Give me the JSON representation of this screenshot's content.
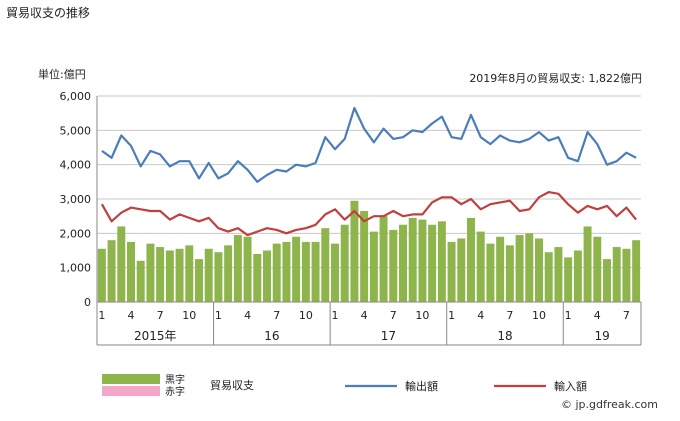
{
  "page": {
    "title": "貿易収支の推移",
    "unit_label": "単位:億円",
    "annotation": "2019年8月の貿易収支: 1,822億円",
    "credit": "© jp.gdfreak.com"
  },
  "legend": {
    "surplus": "黒字",
    "deficit": "赤字",
    "balance": "貿易収支",
    "exports": "輸出額",
    "imports": "輸入額"
  },
  "colors": {
    "surplus": "#8db54c",
    "deficit": "#f4a6c8",
    "exports": "#4a7ebb",
    "imports": "#c0403e",
    "grid": "#c8c8c8",
    "axis": "#888888"
  },
  "chart_data": {
    "type": "bar+line",
    "ylim": [
      0,
      6000
    ],
    "yticks": [
      0,
      1000,
      2000,
      3000,
      4000,
      5000,
      6000
    ],
    "ytick_labels": [
      "0",
      "1,000",
      "2,000",
      "3,000",
      "4,000",
      "5,000",
      "6,000"
    ],
    "month_ticks": [
      {
        "index": 0,
        "label": "1"
      },
      {
        "index": 3,
        "label": "4"
      },
      {
        "index": 6,
        "label": "7"
      },
      {
        "index": 9,
        "label": "10"
      },
      {
        "index": 12,
        "label": "1"
      },
      {
        "index": 15,
        "label": "4"
      },
      {
        "index": 18,
        "label": "7"
      },
      {
        "index": 21,
        "label": "10"
      },
      {
        "index": 24,
        "label": "1"
      },
      {
        "index": 27,
        "label": "4"
      },
      {
        "index": 30,
        "label": "7"
      },
      {
        "index": 33,
        "label": "10"
      },
      {
        "index": 36,
        "label": "1"
      },
      {
        "index": 39,
        "label": "4"
      },
      {
        "index": 42,
        "label": "7"
      },
      {
        "index": 45,
        "label": "10"
      },
      {
        "index": 48,
        "label": "1"
      },
      {
        "index": 51,
        "label": "4"
      },
      {
        "index": 54,
        "label": "7"
      }
    ],
    "years": [
      {
        "label": "2015年",
        "start": 0,
        "end": 12
      },
      {
        "label": "16",
        "start": 12,
        "end": 24
      },
      {
        "label": "17",
        "start": 24,
        "end": 36
      },
      {
        "label": "18",
        "start": 36,
        "end": 48
      },
      {
        "label": "19",
        "start": 48,
        "end": 56
      }
    ],
    "series": [
      {
        "name": "貿易収支",
        "kind": "bar",
        "values": [
          1550,
          1800,
          2200,
          1750,
          1200,
          1700,
          1600,
          1500,
          1550,
          1650,
          1250,
          1550,
          1450,
          1650,
          1950,
          1900,
          1400,
          1500,
          1700,
          1750,
          1900,
          1750,
          1750,
          2150,
          1700,
          2250,
          2950,
          2650,
          2050,
          2500,
          2100,
          2250,
          2450,
          2400,
          2250,
          2350,
          1750,
          1850,
          2450,
          2050,
          1700,
          1900,
          1650,
          1950,
          2000,
          1850,
          1450,
          1600,
          1300,
          1500,
          2200,
          1900,
          1250,
          1600,
          1550,
          1800
        ]
      },
      {
        "name": "輸出額",
        "kind": "line",
        "values": [
          4400,
          4200,
          4850,
          4550,
          3950,
          4400,
          4300,
          3950,
          4100,
          4100,
          3600,
          4050,
          3600,
          3750,
          4100,
          3850,
          3500,
          3700,
          3850,
          3800,
          4000,
          3950,
          4050,
          4800,
          4450,
          4750,
          5650,
          5050,
          4650,
          5050,
          4750,
          4800,
          5000,
          4950,
          5200,
          5400,
          4800,
          4750,
          5450,
          4800,
          4600,
          4850,
          4700,
          4650,
          4750,
          4950,
          4700,
          4800,
          4200,
          4100,
          4950,
          4600,
          4000,
          4100,
          4350,
          4200
        ]
      },
      {
        "name": "輸入額",
        "kind": "line",
        "values": [
          2850,
          2350,
          2600,
          2750,
          2700,
          2650,
          2650,
          2400,
          2550,
          2450,
          2350,
          2450,
          2150,
          2050,
          2150,
          1950,
          2050,
          2150,
          2100,
          2000,
          2100,
          2150,
          2250,
          2550,
          2700,
          2400,
          2650,
          2350,
          2500,
          2500,
          2650,
          2500,
          2550,
          2550,
          2900,
          3050,
          3050,
          2850,
          3000,
          2700,
          2850,
          2900,
          2950,
          2650,
          2700,
          3050,
          3200,
          3150,
          2850,
          2600,
          2800,
          2700,
          2800,
          2500,
          2750,
          2400
        ]
      }
    ]
  }
}
